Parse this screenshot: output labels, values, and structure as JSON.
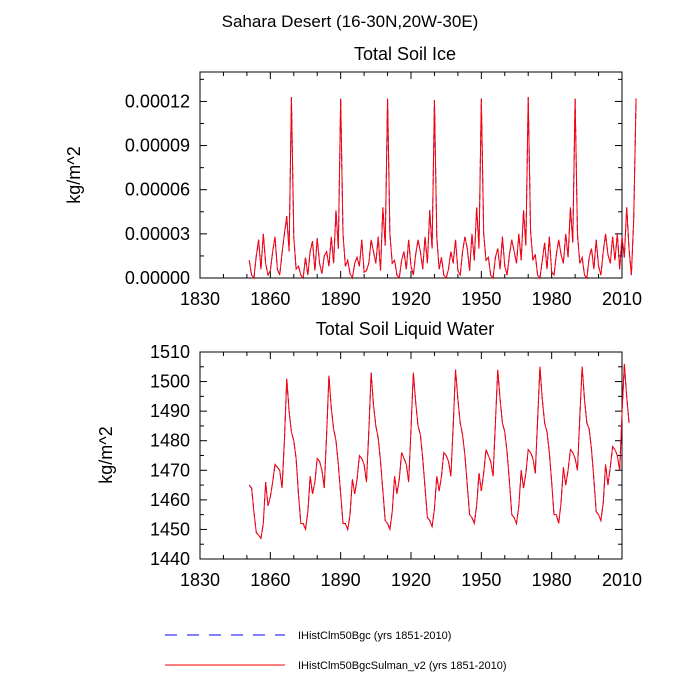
{
  "figure": {
    "title": "Sahara Desert (16-30N,20W-30E)"
  },
  "legend": {
    "placement": "bottom-left",
    "entries": [
      {
        "label": "IHistClm50Bgc (yrs 1851-2010)",
        "color": "#0000ff",
        "dash": "dashed"
      },
      {
        "label": "IHistClm50BgcSulman_v2 (yrs 1851-2010)",
        "color": "#ff0000",
        "dash": "solid"
      }
    ]
  },
  "chart_data": [
    {
      "type": "line",
      "title": "Total Soil Ice",
      "ylabel": "kg/m^2",
      "xlabel": "",
      "xlim": [
        1830,
        2010
      ],
      "ylim": [
        0,
        0.00014
      ],
      "xticks": [
        "1830",
        "1860",
        "1890",
        "1920",
        "1950",
        "1980",
        "2010"
      ],
      "yticks": [
        "0.00000",
        "0.00003",
        "0.00006",
        "0.00009",
        "0.00012"
      ],
      "ytick_values": [
        0,
        3e-05,
        6e-05,
        9e-05,
        0.00012
      ],
      "x_start": 1851,
      "series": [
        {
          "name": "IHistClm50Bgc (yrs 1851-2010)",
          "color": "#0000ff",
          "dash": "dashed",
          "values": [
            1.2e-05,
            2e-06,
            0,
            1.5e-05,
            2.6e-05,
            6e-06,
            3e-05,
            1e-05,
            2e-06,
            5e-06,
            1.8e-05,
            2.8e-05,
            6e-06,
            2e-06,
            1.7e-05,
            3e-05,
            4.2e-05,
            1.8e-05,
            0.000123,
            2.8e-05,
            6e-06,
            8e-06,
            2e-06,
            0,
            1.4e-05,
            2e-06,
            1.8e-05,
            2.5e-05,
            5e-06,
            2.7e-05,
            1e-05,
            3e-06,
            1.5e-05,
            1.8e-05,
            8e-06,
            2.8e-05,
            1e-05,
            4.6e-05,
            2e-05,
            0.000122,
            3e-05,
            8e-06,
            1.2e-05,
            3e-06,
            0,
            1e-05,
            1.4e-05,
            8e-06,
            2.6e-05,
            4e-06,
            5e-06,
            1e-05,
            2.6e-05,
            1.8e-05,
            1e-05,
            2.8e-05,
            5e-06,
            4.8e-05,
            2.2e-05,
            0.000122,
            3e-05,
            1e-05,
            1.2e-05,
            2e-06,
            0,
            1.2e-05,
            1.8e-05,
            6e-06,
            2.6e-05,
            8e-06,
            2e-06,
            1.6e-05,
            2.6e-05,
            1.8e-05,
            6e-06,
            2.8e-05,
            1e-05,
            4.6e-05,
            2e-05,
            0.000121,
            2.8e-05,
            6e-06,
            1.4e-05,
            2e-06,
            0,
            6e-06,
            1.8e-05,
            1e-05,
            2.6e-05,
            5e-06,
            2e-06,
            1.8e-05,
            2.8e-05,
            2e-05,
            5e-06,
            3e-05,
            1.2e-05,
            4.8e-05,
            2e-05,
            0.000122,
            3e-05,
            1.2e-05,
            1.4e-05,
            2e-06,
            0,
            1.4e-05,
            2e-05,
            6e-06,
            2.8e-05,
            8e-06,
            2e-06,
            1.6e-05,
            2.6e-05,
            1.8e-05,
            1e-05,
            3e-05,
            1.2e-05,
            4.6e-05,
            2.2e-05,
            0.000123,
            3.2e-05,
            1.2e-05,
            1.6e-05,
            2e-06,
            0,
            1.2e-05,
            2.4e-05,
            6e-06,
            2.8e-05,
            4e-06,
            2e-06,
            1.6e-05,
            2.6e-05,
            1.6e-05,
            1e-05,
            3e-05,
            1.4e-05,
            4.8e-05,
            2.4e-05,
            0.000122,
            3e-05,
            1e-05,
            1.4e-05,
            2e-06,
            0,
            1.4e-05,
            2e-05,
            6e-06,
            2.6e-05,
            8e-06,
            2e-06,
            1.8e-05,
            3e-05,
            1.6e-05,
            1e-05,
            2.8e-05,
            1.2e-05,
            3e-05,
            6e-06,
            2.8e-05,
            1.4e-05,
            4.8e-05,
            2e-05,
            2e-06,
            4e-05,
            0.000122
          ]
        },
        {
          "name": "IHistClm50BgcSulman_v2 (yrs 1851-2010)",
          "color": "#ff0000",
          "dash": "solid",
          "values": [
            1.2e-05,
            2e-06,
            0,
            1.5e-05,
            2.6e-05,
            6e-06,
            3e-05,
            1e-05,
            2e-06,
            5e-06,
            1.8e-05,
            2.8e-05,
            6e-06,
            2e-06,
            1.7e-05,
            3e-05,
            4.2e-05,
            1.8e-05,
            0.000123,
            2.8e-05,
            6e-06,
            8e-06,
            2e-06,
            0,
            1.4e-05,
            2e-06,
            1.8e-05,
            2.5e-05,
            5e-06,
            2.7e-05,
            1e-05,
            3e-06,
            1.5e-05,
            1.8e-05,
            8e-06,
            2.8e-05,
            1e-05,
            4.6e-05,
            2e-05,
            0.000122,
            3e-05,
            8e-06,
            1.2e-05,
            3e-06,
            0,
            1e-05,
            1.4e-05,
            8e-06,
            2.6e-05,
            4e-06,
            5e-06,
            1e-05,
            2.6e-05,
            1.8e-05,
            1e-05,
            2.8e-05,
            5e-06,
            4.8e-05,
            2.2e-05,
            0.000122,
            3e-05,
            1e-05,
            1.2e-05,
            2e-06,
            0,
            1.2e-05,
            1.8e-05,
            6e-06,
            2.6e-05,
            8e-06,
            2e-06,
            1.6e-05,
            2.6e-05,
            1.8e-05,
            6e-06,
            2.8e-05,
            1e-05,
            4.6e-05,
            2e-05,
            0.000121,
            2.8e-05,
            6e-06,
            1.4e-05,
            2e-06,
            0,
            6e-06,
            1.8e-05,
            1e-05,
            2.6e-05,
            5e-06,
            2e-06,
            1.8e-05,
            2.8e-05,
            2e-05,
            5e-06,
            3e-05,
            1.2e-05,
            4.8e-05,
            2e-05,
            0.000122,
            3e-05,
            1.2e-05,
            1.4e-05,
            2e-06,
            0,
            1.4e-05,
            2e-05,
            6e-06,
            2.8e-05,
            8e-06,
            2e-06,
            1.6e-05,
            2.6e-05,
            1.8e-05,
            1e-05,
            3e-05,
            1.2e-05,
            4.6e-05,
            2.2e-05,
            0.000123,
            3.2e-05,
            1.2e-05,
            1.6e-05,
            2e-06,
            0,
            1.2e-05,
            2.4e-05,
            6e-06,
            2.8e-05,
            4e-06,
            2e-06,
            1.6e-05,
            2.6e-05,
            1.6e-05,
            1e-05,
            3e-05,
            1.4e-05,
            4.8e-05,
            2.4e-05,
            0.000122,
            3e-05,
            1e-05,
            1.4e-05,
            2e-06,
            0,
            1.4e-05,
            2e-05,
            6e-06,
            2.6e-05,
            8e-06,
            2e-06,
            1.8e-05,
            3e-05,
            1.6e-05,
            1e-05,
            2.8e-05,
            1.2e-05,
            3e-05,
            6e-06,
            2.8e-05,
            1.4e-05,
            4.8e-05,
            2e-05,
            2e-06,
            4e-05,
            0.000122
          ]
        }
      ]
    },
    {
      "type": "line",
      "title": "Total Soil Liquid Water",
      "ylabel": "kg/m^2",
      "xlabel": "",
      "xlim": [
        1830,
        2010
      ],
      "ylim": [
        1440,
        1510
      ],
      "xticks": [
        "1830",
        "1860",
        "1890",
        "1920",
        "1950",
        "1980",
        "2010"
      ],
      "yticks": [
        "1440",
        "1450",
        "1460",
        "1470",
        "1480",
        "1490",
        "1500",
        "1510"
      ],
      "ytick_values": [
        1440,
        1450,
        1460,
        1470,
        1480,
        1490,
        1500,
        1510
      ],
      "x_start": 1851,
      "series": [
        {
          "name": "IHistClm50Bgc (yrs 1851-2010)",
          "color": "#0000ff",
          "dash": "dashed",
          "values": [
            1465,
            1464,
            1456,
            1449,
            1448,
            1447,
            1452,
            1466,
            1458,
            1461,
            1466,
            1472,
            1471,
            1470,
            1464,
            1480,
            1501,
            1490,
            1483,
            1480,
            1474,
            1462,
            1452,
            1452,
            1450,
            1456,
            1468,
            1462,
            1466,
            1474,
            1473,
            1470,
            1464,
            1482,
            1502,
            1491,
            1484,
            1480,
            1472,
            1462,
            1452,
            1452,
            1450,
            1455,
            1467,
            1462,
            1467,
            1475,
            1474,
            1472,
            1466,
            1483,
            1503,
            1492,
            1485,
            1481,
            1473,
            1463,
            1453,
            1452,
            1450,
            1456,
            1468,
            1462,
            1467,
            1476,
            1474,
            1472,
            1466,
            1484,
            1503,
            1493,
            1485,
            1482,
            1474,
            1464,
            1454,
            1453,
            1451,
            1457,
            1468,
            1463,
            1468,
            1476,
            1475,
            1473,
            1468,
            1485,
            1504,
            1494,
            1486,
            1482,
            1475,
            1465,
            1455,
            1454,
            1452,
            1458,
            1469,
            1463,
            1469,
            1477,
            1475,
            1473,
            1468,
            1486,
            1504,
            1494,
            1486,
            1483,
            1476,
            1466,
            1455,
            1454,
            1452,
            1458,
            1470,
            1464,
            1469,
            1477,
            1476,
            1474,
            1469,
            1487,
            1505,
            1494,
            1486,
            1483,
            1476,
            1466,
            1455,
            1455,
            1452,
            1459,
            1471,
            1465,
            1470,
            1477,
            1476,
            1474,
            1470,
            1488,
            1505,
            1494,
            1486,
            1484,
            1477,
            1467,
            1456,
            1455,
            1453,
            1459,
            1472,
            1465,
            1471,
            1478,
            1477,
            1475,
            1470,
            1489,
            1506,
            1495,
            1486
          ]
        },
        {
          "name": "IHistClm50BgcSulman_v2 (yrs 1851-2010)",
          "color": "#ff0000",
          "dash": "solid",
          "values": [
            1465,
            1464,
            1456,
            1449,
            1448,
            1447,
            1452,
            1466,
            1458,
            1461,
            1466,
            1472,
            1471,
            1470,
            1464,
            1480,
            1501,
            1490,
            1483,
            1480,
            1474,
            1462,
            1452,
            1452,
            1450,
            1456,
            1468,
            1462,
            1466,
            1474,
            1473,
            1470,
            1464,
            1482,
            1502,
            1491,
            1484,
            1480,
            1472,
            1462,
            1452,
            1452,
            1450,
            1455,
            1467,
            1462,
            1467,
            1475,
            1474,
            1472,
            1466,
            1483,
            1503,
            1492,
            1485,
            1481,
            1473,
            1463,
            1453,
            1452,
            1450,
            1456,
            1468,
            1462,
            1467,
            1476,
            1474,
            1472,
            1466,
            1484,
            1503,
            1493,
            1485,
            1482,
            1474,
            1464,
            1454,
            1453,
            1451,
            1457,
            1468,
            1463,
            1468,
            1476,
            1475,
            1473,
            1468,
            1485,
            1504,
            1494,
            1486,
            1482,
            1475,
            1465,
            1455,
            1454,
            1452,
            1458,
            1469,
            1463,
            1469,
            1477,
            1475,
            1473,
            1468,
            1486,
            1504,
            1494,
            1486,
            1483,
            1476,
            1466,
            1455,
            1454,
            1452,
            1458,
            1470,
            1464,
            1469,
            1477,
            1476,
            1474,
            1469,
            1487,
            1505,
            1494,
            1486,
            1483,
            1476,
            1466,
            1455,
            1455,
            1452,
            1459,
            1471,
            1465,
            1470,
            1477,
            1476,
            1474,
            1470,
            1488,
            1505,
            1494,
            1486,
            1484,
            1477,
            1467,
            1456,
            1455,
            1453,
            1459,
            1472,
            1465,
            1471,
            1478,
            1477,
            1475,
            1470,
            1489,
            1506,
            1495,
            1486
          ]
        }
      ]
    }
  ]
}
